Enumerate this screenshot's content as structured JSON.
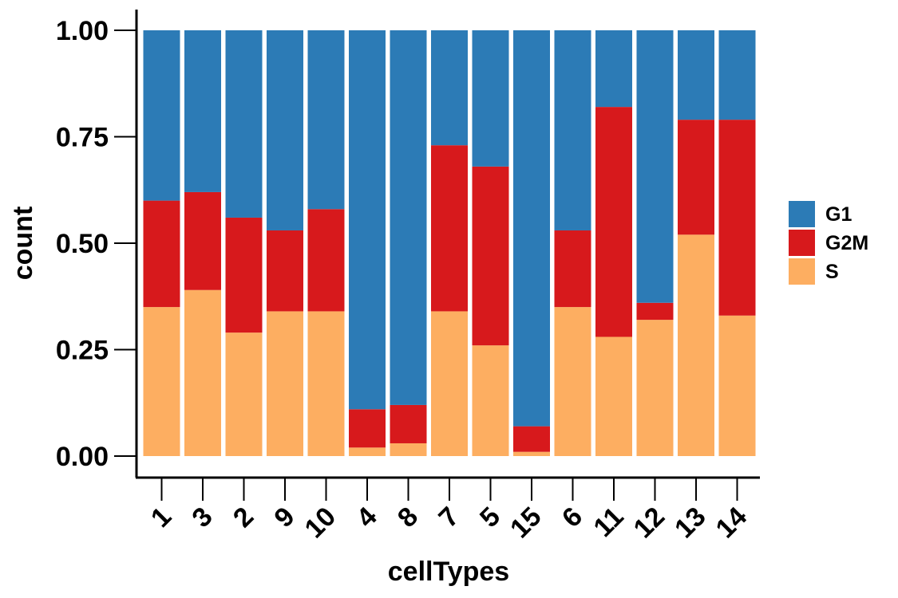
{
  "chart_data": {
    "type": "bar",
    "stacked": true,
    "normalized": true,
    "categories": [
      "1",
      "3",
      "2",
      "9",
      "10",
      "4",
      "8",
      "7",
      "5",
      "15",
      "6",
      "11",
      "12",
      "13",
      "14"
    ],
    "series": [
      {
        "name": "S",
        "color": "#fdae61",
        "values": [
          0.35,
          0.39,
          0.29,
          0.34,
          0.34,
          0.02,
          0.03,
          0.34,
          0.26,
          0.01,
          0.35,
          0.28,
          0.32,
          0.52,
          0.33
        ]
      },
      {
        "name": "G2M",
        "color": "#d7191c",
        "values": [
          0.25,
          0.23,
          0.27,
          0.19,
          0.24,
          0.09,
          0.09,
          0.39,
          0.42,
          0.06,
          0.18,
          0.54,
          0.04,
          0.27,
          0.46
        ]
      },
      {
        "name": "G1",
        "color": "#2c7bb6",
        "values": [
          0.4,
          0.38,
          0.44,
          0.47,
          0.42,
          0.89,
          0.88,
          0.27,
          0.32,
          0.93,
          0.47,
          0.18,
          0.64,
          0.21,
          0.21
        ]
      }
    ],
    "legend_order": [
      "G1",
      "G2M",
      "S"
    ],
    "legend_position": "right",
    "xlabel": "cellTypes",
    "ylabel": "count",
    "ylim": [
      0,
      1
    ],
    "yticks": [
      "0.00",
      "0.25",
      "0.50",
      "0.75",
      "1.00"
    ],
    "grid": false
  }
}
